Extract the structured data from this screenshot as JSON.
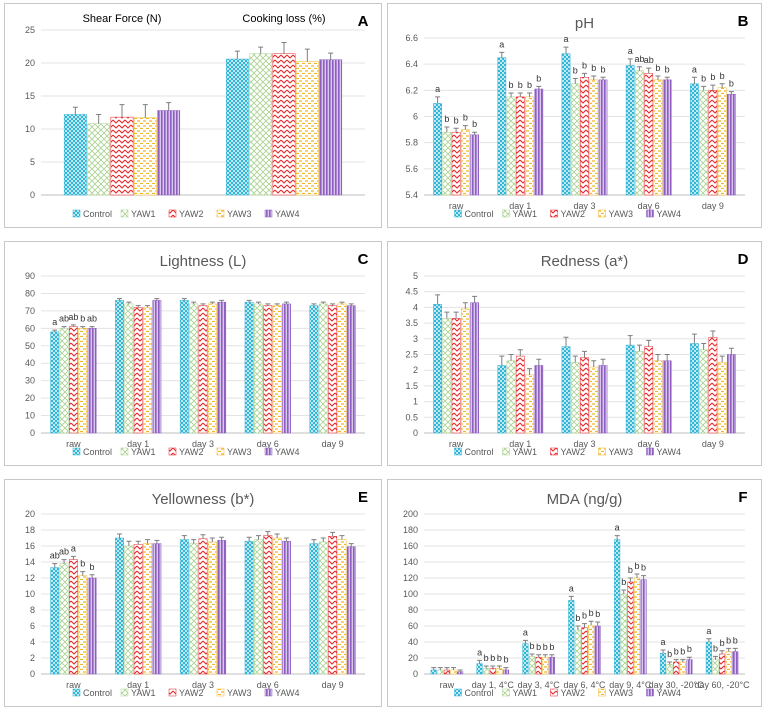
{
  "legend": [
    "Control",
    "YAW1",
    "YAW2",
    "YAW3",
    "YAW4"
  ],
  "series_colors": [
    "#33b6d6",
    "#a9d18e",
    "#e8262a",
    "#f2b626",
    "#8e5fbf"
  ],
  "chart_data": [
    {
      "id": "A",
      "type": "bar",
      "title": "",
      "subtitles": [
        "Shear Force (N)",
        "Cooking loss (%)"
      ],
      "categories": [
        "Shear Force (N)",
        "Cooking loss (%)"
      ],
      "ylim": [
        0,
        25
      ],
      "ystep": 5,
      "ydecimals": 0,
      "yticks": [
        "0",
        "5",
        "10",
        "15",
        "20",
        "25"
      ],
      "series": [
        {
          "name": "Control",
          "values": [
            12.2,
            20.6
          ],
          "errors": [
            1.1,
            1.2
          ]
        },
        {
          "name": "YAW1",
          "values": [
            10.8,
            21.4
          ],
          "errors": [
            1.4,
            1.0
          ]
        },
        {
          "name": "YAW2",
          "values": [
            11.8,
            21.4
          ],
          "errors": [
            1.9,
            1.7
          ]
        },
        {
          "name": "YAW3",
          "values": [
            11.7,
            20.2
          ],
          "errors": [
            2.0,
            1.9
          ]
        },
        {
          "name": "YAW4",
          "values": [
            12.8,
            20.5
          ],
          "errors": [
            1.2,
            1.0
          ]
        }
      ],
      "sig_labels": []
    },
    {
      "id": "B",
      "type": "bar",
      "title": "pH",
      "categories": [
        "raw",
        "day 1",
        "day 3",
        "day 6",
        "day 9"
      ],
      "ylim": [
        5.4,
        6.6
      ],
      "ystep": 0.2,
      "ydecimals": 1,
      "yticks": [
        "5.4",
        "5.6",
        "5.8",
        "6",
        "6.2",
        "6.4",
        "6.6"
      ],
      "series": [
        {
          "name": "Control",
          "values": [
            6.1,
            6.45,
            6.48,
            6.39,
            6.25
          ],
          "errors": [
            0.05,
            0.04,
            0.05,
            0.05,
            0.05
          ]
        },
        {
          "name": "YAW1",
          "values": [
            5.88,
            6.15,
            6.25,
            6.35,
            6.2
          ],
          "errors": [
            0.04,
            0.03,
            0.04,
            0.03,
            0.03
          ]
        },
        {
          "name": "YAW2",
          "values": [
            5.88,
            6.15,
            6.3,
            6.33,
            6.2
          ],
          "errors": [
            0.03,
            0.03,
            0.03,
            0.04,
            0.04
          ]
        },
        {
          "name": "YAW3",
          "values": [
            5.9,
            6.15,
            6.28,
            6.28,
            6.22
          ],
          "errors": [
            0.03,
            0.03,
            0.03,
            0.03,
            0.03
          ]
        },
        {
          "name": "YAW4",
          "values": [
            5.86,
            6.21,
            6.28,
            6.28,
            6.17
          ],
          "errors": [
            0.02,
            0.02,
            0.02,
            0.02,
            0.02
          ]
        }
      ],
      "sig_labels": [
        [
          "a",
          "b",
          "b",
          "b",
          "b"
        ],
        [
          "a",
          "b",
          "b",
          "b",
          "b"
        ],
        [
          "a",
          "b",
          "b",
          "b",
          "b"
        ],
        [
          "a",
          "ab",
          "ab",
          "b",
          "b"
        ],
        [
          "a",
          "b",
          "b",
          "b",
          "b"
        ]
      ]
    },
    {
      "id": "C",
      "type": "bar",
      "title": "Lightness (L)",
      "categories": [
        "raw",
        "day 1",
        "day 3",
        "day 6",
        "day 9"
      ],
      "ylim": [
        0,
        90
      ],
      "ystep": 10,
      "ydecimals": 0,
      "yticks": [
        "0",
        "10",
        "20",
        "30",
        "40",
        "50",
        "60",
        "70",
        "80",
        "90"
      ],
      "series": [
        {
          "name": "Control",
          "values": [
            58,
            76,
            76,
            75,
            73
          ],
          "errors": [
            1,
            1,
            1,
            1,
            1
          ]
        },
        {
          "name": "YAW1",
          "values": [
            60,
            74,
            74,
            74,
            74
          ],
          "errors": [
            1,
            1,
            1,
            1,
            1
          ]
        },
        {
          "name": "YAW2",
          "values": [
            61,
            72,
            73,
            73,
            73
          ],
          "errors": [
            1,
            1,
            1,
            1,
            1
          ]
        },
        {
          "name": "YAW3",
          "values": [
            60,
            72,
            74,
            73,
            74
          ],
          "errors": [
            1,
            1,
            1,
            1,
            1
          ]
        },
        {
          "name": "YAW4",
          "values": [
            60,
            76,
            75,
            74,
            73
          ],
          "errors": [
            1,
            1,
            1,
            1,
            1
          ]
        }
      ],
      "sig_labels": [
        [
          "a",
          "ab",
          "ab",
          "b",
          "ab"
        ],
        [],
        [],
        [],
        []
      ]
    },
    {
      "id": "D",
      "type": "bar",
      "title": "Redness (a*)",
      "categories": [
        "raw",
        "day 1",
        "day 3",
        "day 6",
        "day 9"
      ],
      "ylim": [
        0,
        5
      ],
      "ystep": 0.5,
      "ydecimals": 1,
      "yticks": [
        "0",
        "0.5",
        "1",
        "1.5",
        "2",
        "2.5",
        "3",
        "3.5",
        "4",
        "4.5",
        "5"
      ],
      "series": [
        {
          "name": "Control",
          "values": [
            4.1,
            2.15,
            2.75,
            2.8,
            2.85
          ],
          "errors": [
            0.3,
            0.3,
            0.3,
            0.3,
            0.3
          ]
        },
        {
          "name": "YAW1",
          "values": [
            3.65,
            2.3,
            2.25,
            2.6,
            2.65
          ],
          "errors": [
            0.2,
            0.2,
            0.2,
            0.2,
            0.2
          ]
        },
        {
          "name": "YAW2",
          "values": [
            3.65,
            2.45,
            2.4,
            2.75,
            3.05
          ],
          "errors": [
            0.2,
            0.2,
            0.2,
            0.2,
            0.2
          ]
        },
        {
          "name": "YAW3",
          "values": [
            3.95,
            1.85,
            2.1,
            2.3,
            2.25
          ],
          "errors": [
            0.2,
            0.2,
            0.2,
            0.2,
            0.2
          ]
        },
        {
          "name": "YAW4",
          "values": [
            4.15,
            2.15,
            2.15,
            2.3,
            2.5
          ],
          "errors": [
            0.2,
            0.2,
            0.2,
            0.2,
            0.2
          ]
        }
      ],
      "sig_labels": []
    },
    {
      "id": "E",
      "type": "bar",
      "title": "Yellowness (b*)",
      "categories": [
        "raw",
        "day 1",
        "day 3",
        "day 6",
        "day 9"
      ],
      "ylim": [
        0,
        20
      ],
      "ystep": 2,
      "ydecimals": 0,
      "yticks": [
        "0",
        "2",
        "4",
        "6",
        "8",
        "10",
        "12",
        "14",
        "16",
        "18",
        "20"
      ],
      "series": [
        {
          "name": "Control",
          "values": [
            13.3,
            17.0,
            16.8,
            16.6,
            16.3
          ],
          "errors": [
            0.5,
            0.5,
            0.5,
            0.5,
            0.5
          ]
        },
        {
          "name": "YAW1",
          "values": [
            13.8,
            16.0,
            16.3,
            16.8,
            16.5
          ],
          "errors": [
            0.5,
            0.6,
            0.5,
            0.5,
            0.5
          ]
        },
        {
          "name": "YAW2",
          "values": [
            14.3,
            16.2,
            16.9,
            17.3,
            17.2
          ],
          "errors": [
            0.4,
            0.4,
            0.5,
            0.5,
            0.5
          ]
        },
        {
          "name": "YAW3",
          "values": [
            12.3,
            16.3,
            16.5,
            17.0,
            16.8
          ],
          "errors": [
            0.5,
            0.5,
            0.5,
            0.5,
            0.5
          ]
        },
        {
          "name": "YAW4",
          "values": [
            12.0,
            16.3,
            16.7,
            16.6,
            15.9
          ],
          "errors": [
            0.4,
            0.4,
            0.4,
            0.4,
            0.4
          ]
        }
      ],
      "sig_labels": [
        [
          "ab",
          "ab",
          "a",
          "b",
          "b"
        ],
        [],
        [],
        [],
        []
      ]
    },
    {
      "id": "F",
      "type": "bar",
      "title": "MDA (ng/g)",
      "categories": [
        "raw",
        "day 1,  4°C",
        "day 3, 4°C",
        "day 6, 4°C",
        "day 9, 4°C",
        "day 30, -20°C",
        "day 60, -20°C"
      ],
      "ylim": [
        0,
        200
      ],
      "ystep": 20,
      "ydecimals": 0,
      "yticks": [
        "0",
        "20",
        "40",
        "60",
        "80",
        "100",
        "120",
        "140",
        "160",
        "180",
        "200"
      ],
      "series": [
        {
          "name": "Control",
          "values": [
            5,
            13,
            38,
            92,
            168,
            26,
            40
          ],
          "errors": [
            3,
            4,
            4,
            5,
            5,
            4,
            4
          ]
        },
        {
          "name": "YAW1",
          "values": [
            5,
            7,
            22,
            55,
            100,
            12,
            18
          ],
          "errors": [
            3,
            3,
            3,
            5,
            5,
            3,
            4
          ]
        },
        {
          "name": "YAW2",
          "values": [
            5,
            7,
            21,
            58,
            115,
            15,
            25
          ],
          "errors": [
            3,
            3,
            3,
            5,
            5,
            3,
            4
          ]
        },
        {
          "name": "YAW3",
          "values": [
            5,
            7,
            21,
            61,
            120,
            15,
            28
          ],
          "errors": [
            3,
            3,
            3,
            5,
            5,
            3,
            4
          ]
        },
        {
          "name": "YAW4",
          "values": [
            3,
            5,
            21,
            60,
            118,
            18,
            28
          ],
          "errors": [
            2,
            3,
            3,
            5,
            5,
            3,
            4
          ]
        }
      ],
      "sig_labels": [
        [],
        [
          "a",
          "b",
          "b",
          "b",
          "b"
        ],
        [
          "a",
          "b",
          "b",
          "b",
          "b"
        ],
        [
          "a",
          "b",
          "b",
          "b",
          "b"
        ],
        [
          "a",
          "b",
          "b",
          "b",
          "b"
        ],
        [
          "a",
          "b",
          "b",
          "b",
          "b"
        ],
        [
          "a",
          "b",
          "b",
          "b",
          "b"
        ]
      ]
    }
  ]
}
